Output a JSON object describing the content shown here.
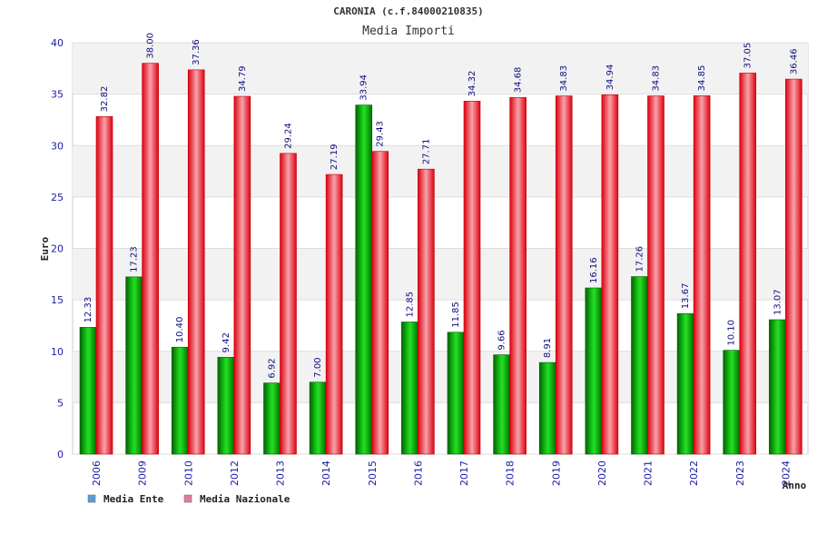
{
  "chart_data": {
    "type": "bar",
    "title": "CARONIA (c.f.84000210835)",
    "subtitle": "Media Importi",
    "xlabel": "Anno",
    "ylabel": "Euro",
    "ylim": [
      0,
      40
    ],
    "yticks": [
      0,
      5,
      10,
      15,
      20,
      25,
      30,
      35,
      40
    ],
    "categories": [
      "2006",
      "2009",
      "2010",
      "2012",
      "2013",
      "2014",
      "2015",
      "2016",
      "2017",
      "2018",
      "2019",
      "2020",
      "2021",
      "2022",
      "2023",
      "2024"
    ],
    "series": [
      {
        "name": "Media Ente",
        "values": [
          12.33,
          17.23,
          10.4,
          9.42,
          6.92,
          7.0,
          33.94,
          12.85,
          11.85,
          9.66,
          8.91,
          16.16,
          17.26,
          13.67,
          10.1,
          13.07
        ],
        "labels": [
          "12.33",
          "17.23",
          "10.40",
          "9.42",
          "6.92",
          "7.00",
          "33.94",
          "12.85",
          "11.85",
          "9.66",
          "8.91",
          "16.16",
          "17.26",
          "13.67",
          "10.10",
          "13.07"
        ],
        "color": "#11b811",
        "legend_color": "#5b9bd5"
      },
      {
        "name": "Media Nazionale",
        "values": [
          32.82,
          38.0,
          37.36,
          34.79,
          29.24,
          27.19,
          29.43,
          27.71,
          34.32,
          34.68,
          34.83,
          34.94,
          34.83,
          34.85,
          37.05,
          36.46
        ],
        "labels": [
          "32.82",
          "38.00",
          "37.36",
          "34.79",
          "29.24",
          "27.19",
          "29.43",
          "27.71",
          "34.32",
          "34.68",
          "34.83",
          "34.94",
          "34.83",
          "34.85",
          "37.05",
          "36.46"
        ],
        "color": "#e8141e",
        "legend_color": "#e07aa0"
      }
    ],
    "grid": true,
    "legend_position": "bottom-left"
  }
}
